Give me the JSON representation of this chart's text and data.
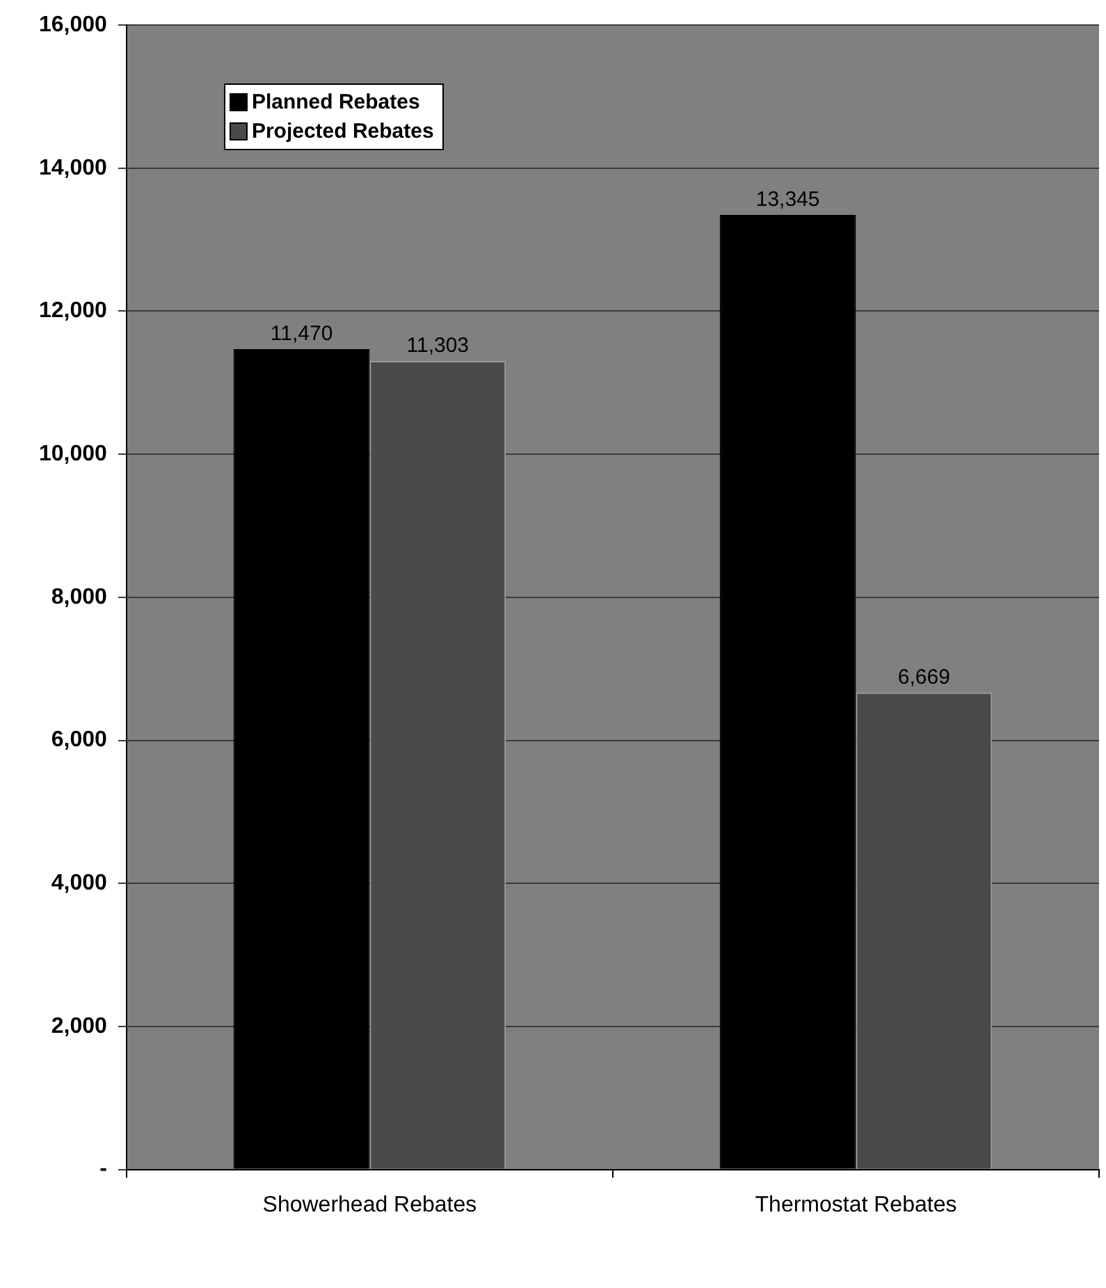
{
  "chart_data": {
    "type": "bar",
    "categories": [
      "Showerhead Rebates",
      "Thermostat Rebates"
    ],
    "series": [
      {
        "name": "Planned Rebates",
        "color": "#000000",
        "values": [
          11470,
          13345
        ],
        "value_labels": [
          "11,470",
          "13,345"
        ]
      },
      {
        "name": "Projected Rebates",
        "color": "#4a4a4a",
        "values": [
          11303,
          6669
        ],
        "value_labels": [
          "11,303",
          "6,669"
        ]
      }
    ],
    "ylim": [
      0,
      16000
    ],
    "yticks": [
      {
        "value": 0,
        "label": "-"
      },
      {
        "value": 2000,
        "label": "2,000"
      },
      {
        "value": 4000,
        "label": "4,000"
      },
      {
        "value": 6000,
        "label": "6,000"
      },
      {
        "value": 8000,
        "label": "8,000"
      },
      {
        "value": 10000,
        "label": "10,000"
      },
      {
        "value": 12000,
        "label": "12,000"
      },
      {
        "value": 14000,
        "label": "14,000"
      },
      {
        "value": 16000,
        "label": "16,000"
      }
    ],
    "grid": "y",
    "legend": "top left"
  }
}
